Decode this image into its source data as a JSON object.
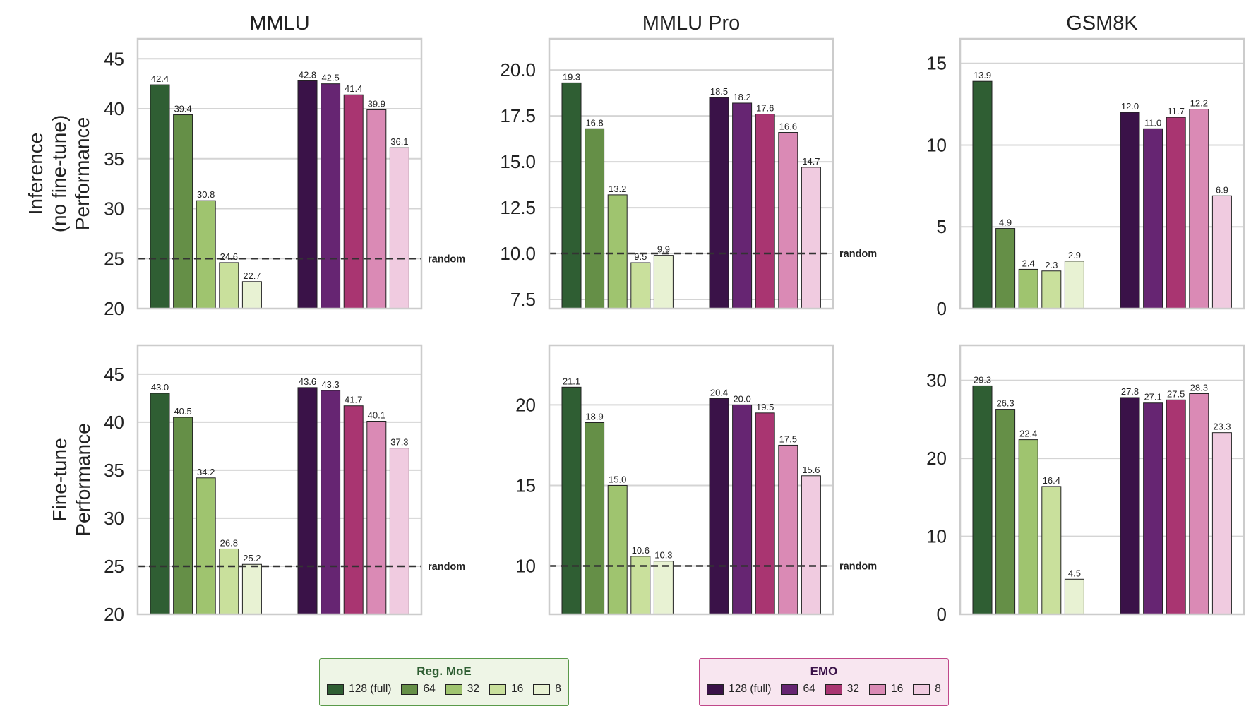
{
  "chart_data": {
    "type": "bar",
    "groups": [
      "Reg. MoE",
      "EMO"
    ],
    "categories": [
      "128 (full)",
      "64",
      "32",
      "16",
      "8"
    ],
    "colors": {
      "Reg. MoE": [
        "#2f5e33",
        "#658f47",
        "#9fc46f",
        "#c9e09c",
        "#e8f2d3"
      ],
      "EMO": [
        "#3a1248",
        "#662572",
        "#a93571",
        "#da8ab5",
        "#f0cbe0"
      ]
    },
    "row_labels": [
      "Inference\n(no fine-tune)\nPerformance",
      "Fine-tune\nPerformance"
    ],
    "column_titles": [
      "MMLU",
      "MMLU Pro",
      "GSM8K"
    ],
    "random_label": "random",
    "panels": [
      {
        "row": 0,
        "col": 0,
        "ylim": [
          20,
          47
        ],
        "yticks": [
          "20",
          "25",
          "30",
          "35",
          "40",
          "45"
        ],
        "random": 25,
        "series": [
          {
            "name": "Reg. MoE",
            "values": [
              42.4,
              39.4,
              30.8,
              24.6,
              22.7
            ]
          },
          {
            "name": "EMO",
            "values": [
              42.8,
              42.5,
              41.4,
              39.9,
              36.1
            ]
          }
        ]
      },
      {
        "row": 0,
        "col": 1,
        "ylim": [
          7.0,
          21.7
        ],
        "yticks": [
          "7.5",
          "10.0",
          "12.5",
          "15.0",
          "17.5",
          "20.0"
        ],
        "random": 10.0,
        "series": [
          {
            "name": "Reg. MoE",
            "values": [
              19.3,
              16.8,
              13.2,
              9.5,
              9.9
            ]
          },
          {
            "name": "EMO",
            "values": [
              18.5,
              18.2,
              17.6,
              16.6,
              14.7
            ]
          }
        ]
      },
      {
        "row": 0,
        "col": 2,
        "ylim": [
          0,
          16.5
        ],
        "yticks": [
          "0",
          "5",
          "10",
          "15"
        ],
        "random": null,
        "series": [
          {
            "name": "Reg. MoE",
            "values": [
              13.9,
              4.9,
              2.4,
              2.3,
              2.9
            ]
          },
          {
            "name": "EMO",
            "values": [
              12.0,
              11.0,
              11.7,
              12.2,
              6.9
            ]
          }
        ]
      },
      {
        "row": 1,
        "col": 0,
        "ylim": [
          20,
          48
        ],
        "yticks": [
          "20",
          "25",
          "30",
          "35",
          "40",
          "45"
        ],
        "random": 25,
        "series": [
          {
            "name": "Reg. MoE",
            "values": [
              43.0,
              40.5,
              34.2,
              26.8,
              25.2
            ]
          },
          {
            "name": "EMO",
            "values": [
              43.6,
              43.3,
              41.7,
              40.1,
              37.3
            ]
          }
        ]
      },
      {
        "row": 1,
        "col": 1,
        "ylim": [
          7,
          23.7
        ],
        "yticks": [
          "10",
          "15",
          "20"
        ],
        "random": 10,
        "series": [
          {
            "name": "Reg. MoE",
            "values": [
              21.1,
              18.9,
              15.0,
              10.6,
              10.3
            ]
          },
          {
            "name": "EMO",
            "values": [
              20.4,
              20.0,
              19.5,
              17.5,
              15.6
            ]
          }
        ]
      },
      {
        "row": 1,
        "col": 2,
        "ylim": [
          0,
          34.5
        ],
        "yticks": [
          "0",
          "10",
          "20",
          "30"
        ],
        "random": null,
        "series": [
          {
            "name": "Reg. MoE",
            "values": [
              29.3,
              26.3,
              22.4,
              16.4,
              4.5
            ]
          },
          {
            "name": "EMO",
            "values": [
              27.8,
              27.1,
              27.5,
              28.3,
              23.3
            ]
          }
        ]
      }
    ]
  },
  "legends": [
    {
      "title": "Reg. MoE",
      "title_color": "#2f5e33",
      "bg": "#eef5e6",
      "border": "#5a9a4a",
      "items": [
        "128 (full)",
        "64",
        "32",
        "16",
        "8"
      ],
      "colors": [
        "#2f5e33",
        "#658f47",
        "#9fc46f",
        "#c9e09c",
        "#e8f2d3"
      ]
    },
    {
      "title": "EMO",
      "title_color": "#3a1248",
      "bg": "#f8e6f0",
      "border": "#c0488a",
      "items": [
        "128 (full)",
        "64",
        "32",
        "16",
        "8"
      ],
      "colors": [
        "#3a1248",
        "#662572",
        "#a93571",
        "#da8ab5",
        "#f0cbe0"
      ]
    }
  ]
}
